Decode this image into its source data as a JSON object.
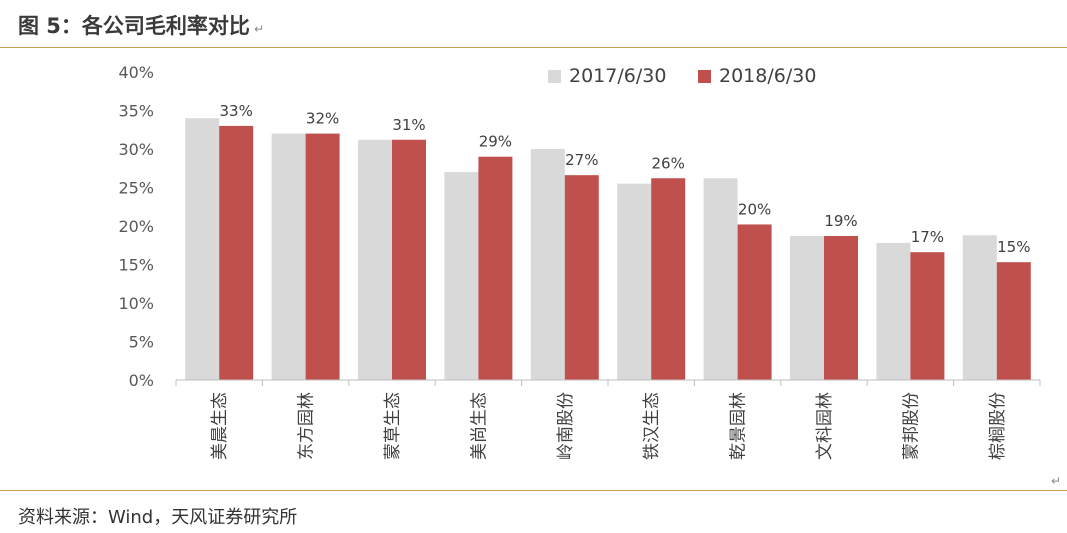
{
  "figure": {
    "title": "图 5：各公司毛利率对比",
    "para_mark": "↵",
    "source": "资料来源：Wind，天风证券研究所",
    "corner_mark": "↵"
  },
  "chart_data": {
    "type": "bar",
    "categories": [
      "美晨生态",
      "东方园林",
      "蒙草生态",
      "美尚生态",
      "岭南股份",
      "铁汉生态",
      "乾景园林",
      "文科园林",
      "蒙邦股份",
      "棕榈股份"
    ],
    "series": [
      {
        "name": "2017/6/30",
        "values": [
          34,
          32,
          31.2,
          27,
          30,
          25.5,
          26.2,
          18.7,
          17.8,
          18.8
        ],
        "color": "#d9d9d9",
        "show_labels": false
      },
      {
        "name": "2018/6/30",
        "values": [
          33,
          32,
          31.2,
          29,
          26.6,
          26.2,
          20.2,
          18.7,
          16.6,
          15.3
        ],
        "color": "#c0504d",
        "show_labels": true
      }
    ],
    "data_labels": [
      "33%",
      "32%",
      "31%",
      "29%",
      "27%",
      "26%",
      "20%",
      "19%",
      "17%",
      "15%"
    ],
    "y_ticks": [
      "0%",
      "5%",
      "10%",
      "15%",
      "20%",
      "25%",
      "30%",
      "35%",
      "40%"
    ],
    "ylim": [
      0,
      40
    ],
    "y_step": 5,
    "grid": false,
    "legend_position": "top-right"
  }
}
